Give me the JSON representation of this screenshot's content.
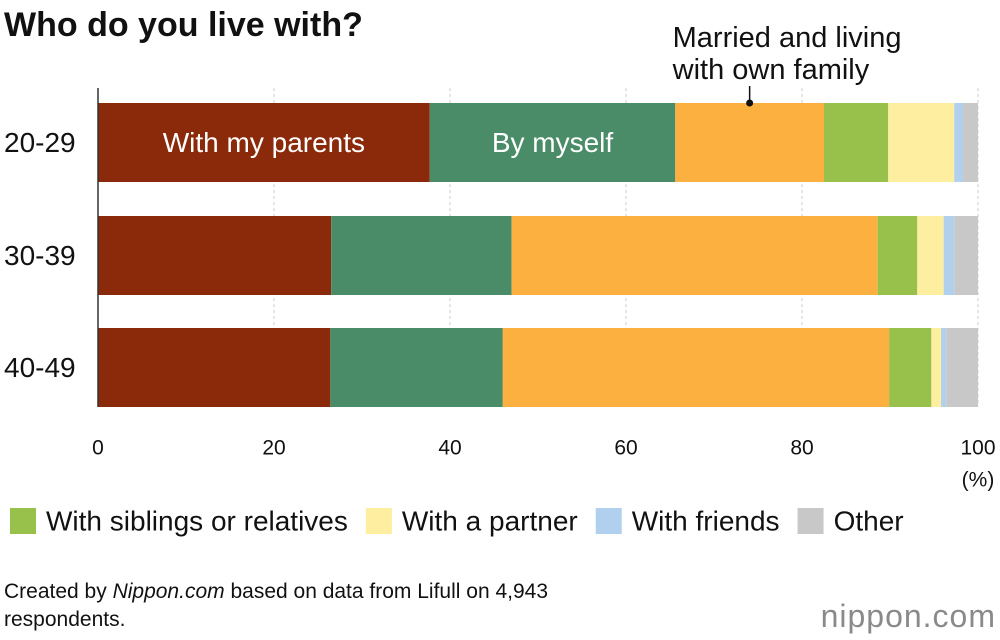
{
  "chart_data": {
    "type": "stacked-barh",
    "title": "Who do you live with?",
    "categories": [
      "20-29",
      "30-39",
      "40-49"
    ],
    "series": [
      {
        "name": "With my parents",
        "color": "#8b2a0a",
        "label": "inside",
        "values": [
          37.7,
          26.5,
          26.4
        ]
      },
      {
        "name": "By myself",
        "color": "#4a8c68",
        "label": "inside",
        "values": [
          27.9,
          20.5,
          19.6
        ]
      },
      {
        "name": "Married and living with own family",
        "color": "#fbb040",
        "label": "callout",
        "values": [
          16.9,
          41.6,
          43.9
        ]
      },
      {
        "name": "With siblings or relatives",
        "color": "#97c14a",
        "label": "legend",
        "values": [
          7.3,
          4.5,
          4.8
        ]
      },
      {
        "name": "With a partner",
        "color": "#fdeea0",
        "label": "legend",
        "values": [
          7.5,
          3.0,
          1.1
        ]
      },
      {
        "name": "With friends",
        "color": "#b0d0ee",
        "label": "legend",
        "values": [
          1.0,
          1.2,
          0.6
        ]
      },
      {
        "name": "Other",
        "color": "#c8c8c8",
        "label": "legend",
        "values": [
          1.7,
          2.7,
          3.6
        ]
      }
    ],
    "xlim": [
      0,
      100
    ],
    "xticks": [
      0,
      20,
      40,
      60,
      80,
      100
    ],
    "x_unit": "(%)",
    "grid": true,
    "footnote": [
      "Created by ",
      "Nippon.com",
      " based on data from Lifull on 4,943 respondents."
    ],
    "logo": "nippon.com"
  }
}
